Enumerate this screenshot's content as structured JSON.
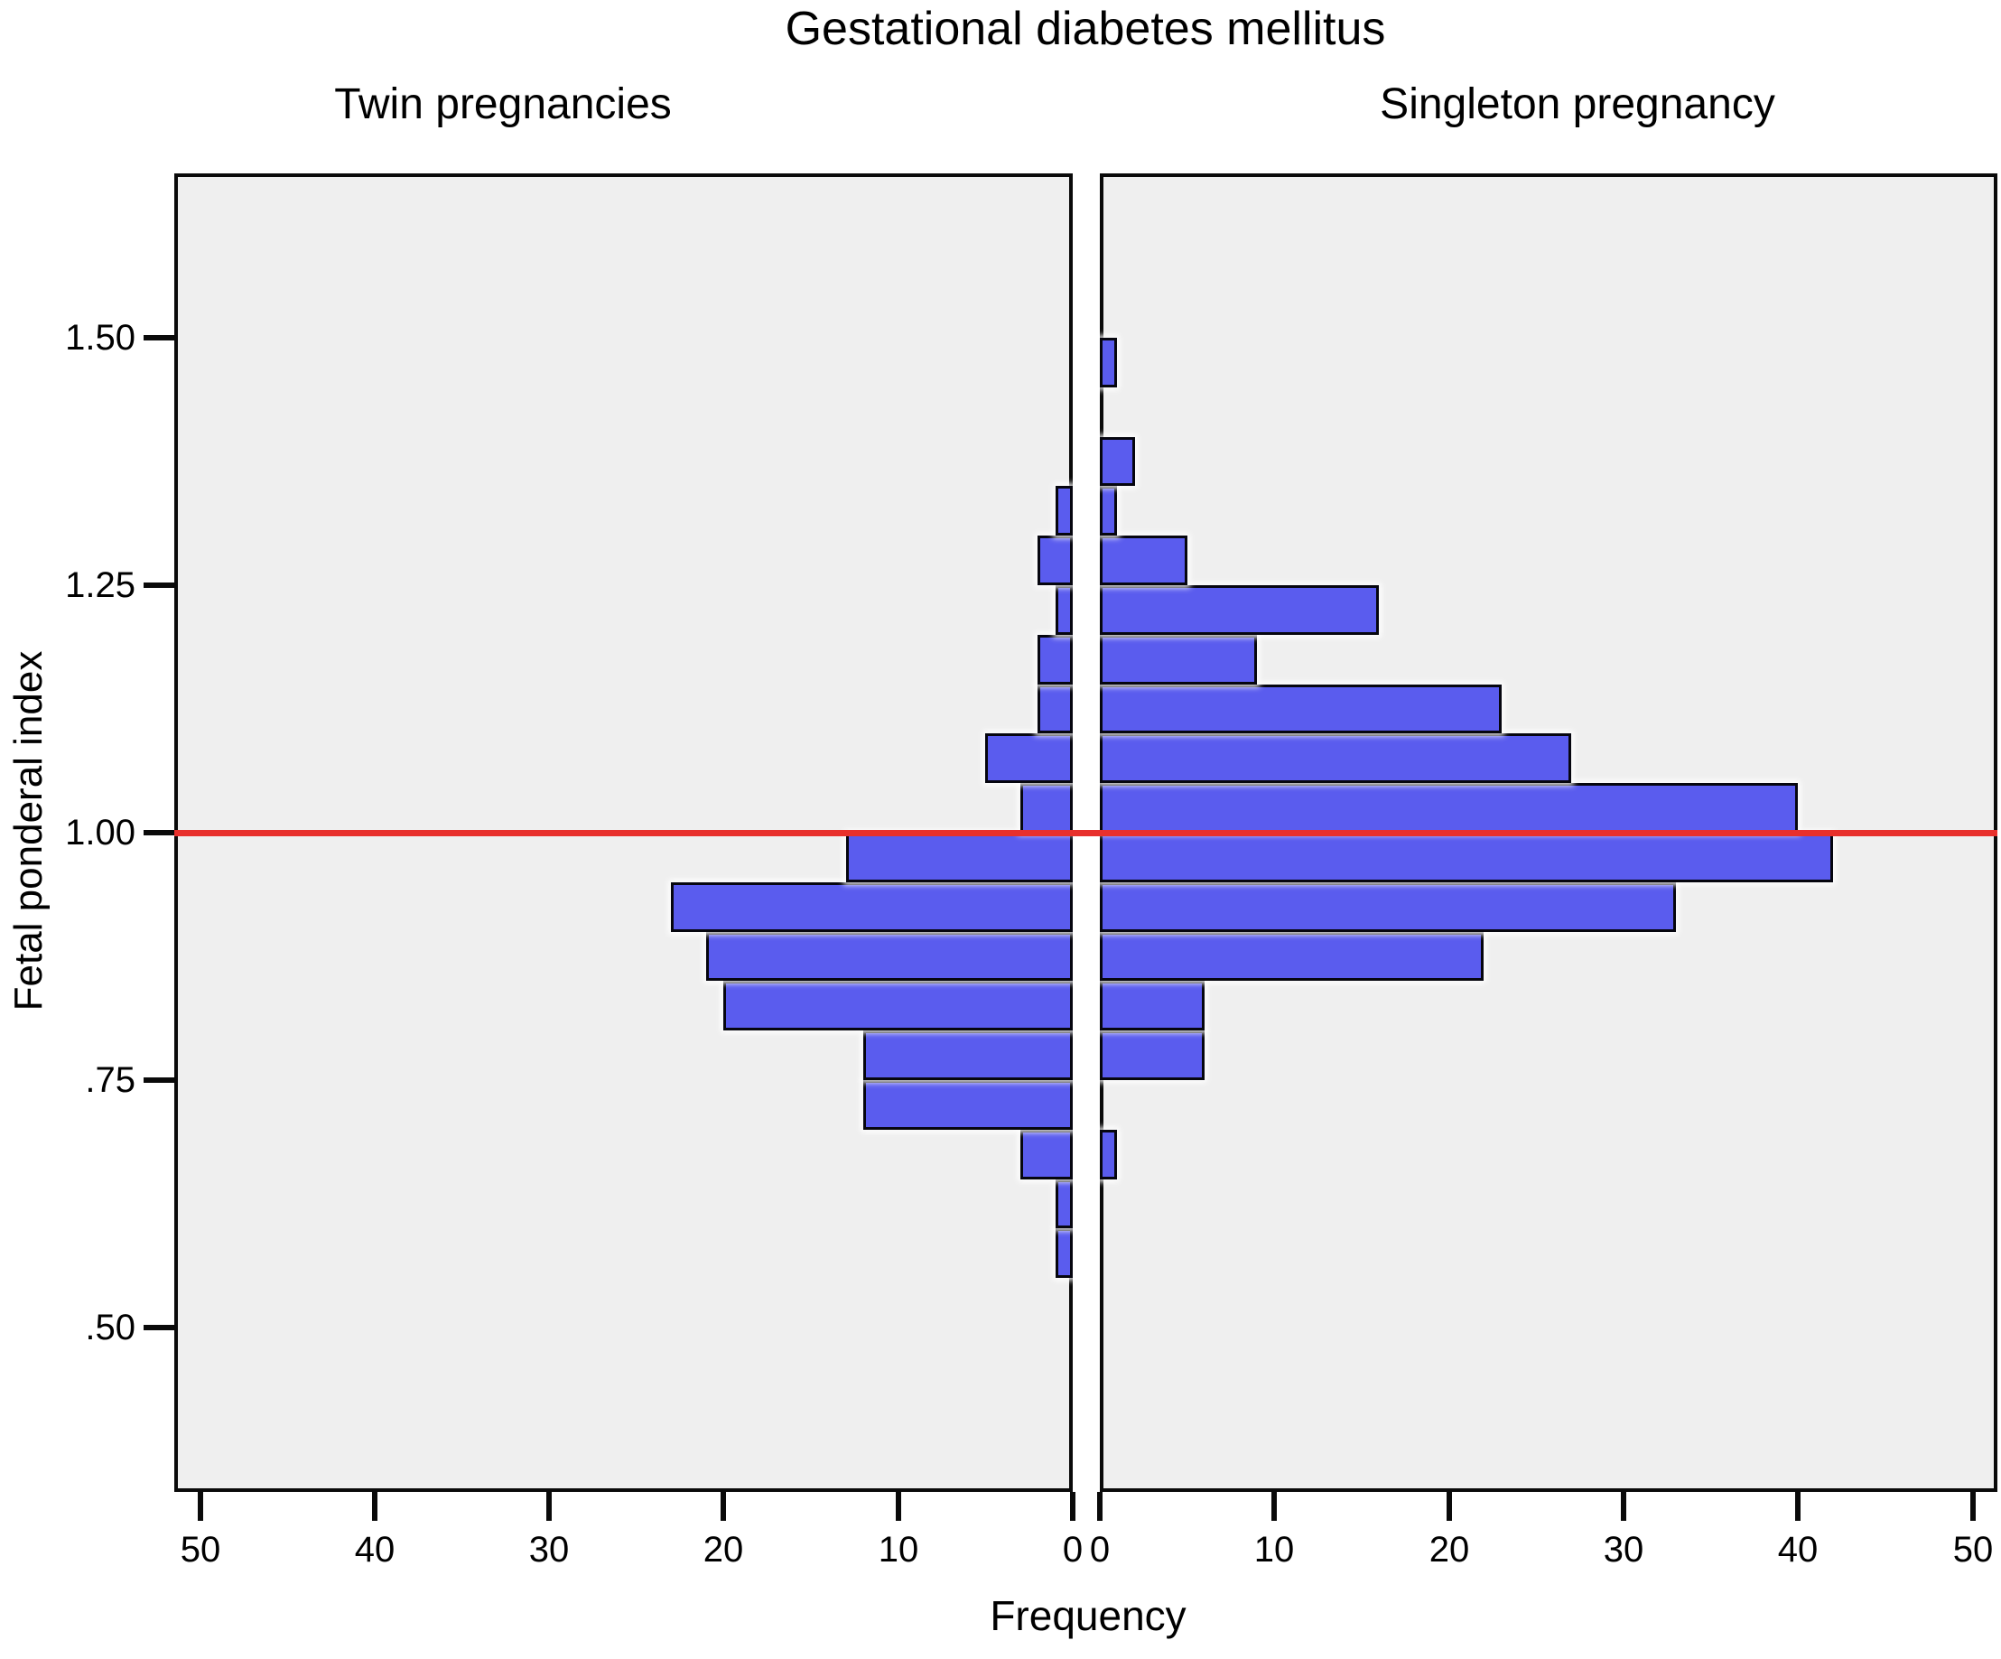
{
  "title": "Gestational diabetes mellitus",
  "panels": {
    "left_label": "Twin pregnancies",
    "right_label": "Singleton pregnancy"
  },
  "axes": {
    "y_label": "Fetal ponderal index",
    "x_label": "Frequency",
    "y_ticks": [
      {
        "label": "1.50",
        "value": 1.5
      },
      {
        "label": "1.25",
        "value": 1.25
      },
      {
        "label": "1.00",
        "value": 1.0
      },
      {
        "label": ".75",
        "value": 0.75
      },
      {
        "label": ".50",
        "value": 0.5
      }
    ],
    "x_ticks_left": [
      {
        "label": "50",
        "value": 50
      },
      {
        "label": "40",
        "value": 40
      },
      {
        "label": "30",
        "value": 30
      },
      {
        "label": "20",
        "value": 20
      },
      {
        "label": "10",
        "value": 10
      },
      {
        "label": "0",
        "value": 0
      }
    ],
    "x_ticks_right": [
      {
        "label": "0",
        "value": 0
      },
      {
        "label": "10",
        "value": 10
      },
      {
        "label": "20",
        "value": 20
      },
      {
        "label": "30",
        "value": 30
      },
      {
        "label": "40",
        "value": 40
      },
      {
        "label": "50",
        "value": 50
      }
    ]
  },
  "reference_line": {
    "value": 1.0,
    "color": "#e8302c"
  },
  "colors": {
    "bar_fill": "#5a5cee",
    "bar_border": "#06060f",
    "panel_background": "#efefef",
    "panel_border": "#0a0a0a",
    "reference_line": "#e8302c"
  },
  "chart_data": {
    "type": "bar",
    "subtype": "population-pyramid-histogram",
    "title": "Gestational diabetes mellitus",
    "ylabel": "Fetal ponderal index",
    "xlabel": "Frequency",
    "bin_width": 0.05,
    "ylim": [
      0.334,
      1.666
    ],
    "xlim_per_panel": [
      0,
      51.5
    ],
    "grid": false,
    "series": [
      {
        "name": "Twin pregnancies",
        "side": "left",
        "bins": [
          {
            "from": 0.55,
            "to": 0.6,
            "freq": 1
          },
          {
            "from": 0.6,
            "to": 0.65,
            "freq": 1
          },
          {
            "from": 0.65,
            "to": 0.7,
            "freq": 3
          },
          {
            "from": 0.7,
            "to": 0.75,
            "freq": 12
          },
          {
            "from": 0.75,
            "to": 0.8,
            "freq": 12
          },
          {
            "from": 0.8,
            "to": 0.85,
            "freq": 20
          },
          {
            "from": 0.85,
            "to": 0.9,
            "freq": 21
          },
          {
            "from": 0.9,
            "to": 0.95,
            "freq": 23
          },
          {
            "from": 0.95,
            "to": 1.0,
            "freq": 13
          },
          {
            "from": 1.0,
            "to": 1.05,
            "freq": 3
          },
          {
            "from": 1.05,
            "to": 1.1,
            "freq": 5
          },
          {
            "from": 1.1,
            "to": 1.15,
            "freq": 2
          },
          {
            "from": 1.15,
            "to": 1.2,
            "freq": 2
          },
          {
            "from": 1.2,
            "to": 1.25,
            "freq": 1
          },
          {
            "from": 1.25,
            "to": 1.3,
            "freq": 2
          },
          {
            "from": 1.3,
            "to": 1.35,
            "freq": 1
          }
        ]
      },
      {
        "name": "Singleton pregnancy",
        "side": "right",
        "bins": [
          {
            "from": 0.65,
            "to": 0.7,
            "freq": 1
          },
          {
            "from": 0.7,
            "to": 0.75,
            "freq": 0
          },
          {
            "from": 0.75,
            "to": 0.8,
            "freq": 6
          },
          {
            "from": 0.8,
            "to": 0.85,
            "freq": 6
          },
          {
            "from": 0.85,
            "to": 0.9,
            "freq": 22
          },
          {
            "from": 0.9,
            "to": 0.95,
            "freq": 33
          },
          {
            "from": 0.95,
            "to": 1.0,
            "freq": 42
          },
          {
            "from": 1.0,
            "to": 1.05,
            "freq": 40
          },
          {
            "from": 1.05,
            "to": 1.1,
            "freq": 27
          },
          {
            "from": 1.1,
            "to": 1.15,
            "freq": 23
          },
          {
            "from": 1.15,
            "to": 1.2,
            "freq": 9
          },
          {
            "from": 1.2,
            "to": 1.25,
            "freq": 16
          },
          {
            "from": 1.25,
            "to": 1.3,
            "freq": 5
          },
          {
            "from": 1.3,
            "to": 1.35,
            "freq": 1
          },
          {
            "from": 1.35,
            "to": 1.4,
            "freq": 2
          },
          {
            "from": 1.4,
            "to": 1.45,
            "freq": 0
          },
          {
            "from": 1.45,
            "to": 1.5,
            "freq": 1
          }
        ]
      }
    ]
  }
}
